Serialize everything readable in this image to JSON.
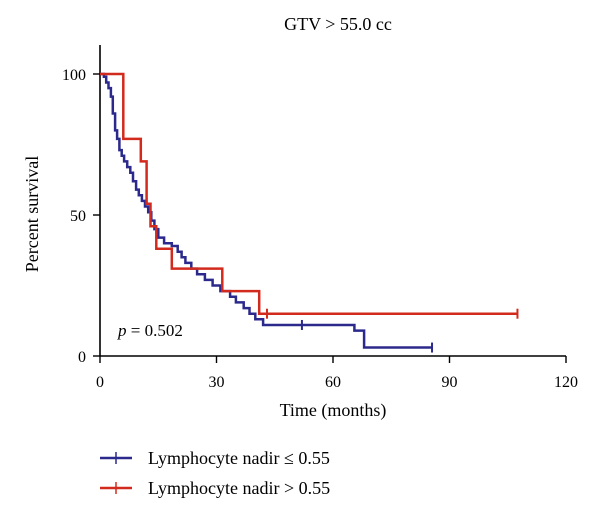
{
  "chart_data": {
    "type": "line",
    "title": "GTV > 55.0 cc",
    "xlabel": "Time (months)",
    "ylabel": "Percent survival",
    "xlim": [
      0,
      120
    ],
    "ylim": [
      0,
      100
    ],
    "xticks": [
      0,
      30,
      60,
      90,
      120
    ],
    "yticks": [
      0,
      50,
      100
    ],
    "grid": false,
    "legend_position": "bottom-left",
    "annotation_p_symbol": "p",
    "annotation_p_value": " = 0.502",
    "series": [
      {
        "name": "Lymphocyte nadir ≤ 0.55",
        "color": "#2b2a8c",
        "step": [
          [
            0,
            100
          ],
          [
            1.0,
            99
          ],
          [
            1.6,
            97
          ],
          [
            2.2,
            95
          ],
          [
            2.8,
            92
          ],
          [
            3.3,
            86
          ],
          [
            3.9,
            80
          ],
          [
            4.4,
            77
          ],
          [
            5.0,
            73
          ],
          [
            5.6,
            71
          ],
          [
            6.2,
            69
          ],
          [
            7.0,
            67
          ],
          [
            7.8,
            65
          ],
          [
            8.5,
            62
          ],
          [
            9.3,
            59
          ],
          [
            10.0,
            57
          ],
          [
            10.8,
            55
          ],
          [
            11.6,
            53
          ],
          [
            12.4,
            51
          ],
          [
            13.2,
            48
          ],
          [
            14.0,
            45
          ],
          [
            15.0,
            42
          ],
          [
            16.5,
            40
          ],
          [
            18.5,
            39
          ],
          [
            20.0,
            37
          ],
          [
            21.0,
            35
          ],
          [
            22.0,
            33
          ],
          [
            23.5,
            31
          ],
          [
            25.0,
            29
          ],
          [
            27.0,
            27
          ],
          [
            29.0,
            25
          ],
          [
            31.0,
            23
          ],
          [
            33.5,
            21
          ],
          [
            35.0,
            19
          ],
          [
            37.0,
            17
          ],
          [
            38.5,
            15
          ],
          [
            40.0,
            13
          ],
          [
            42.0,
            11
          ],
          [
            65.5,
            9
          ],
          [
            68.0,
            3
          ],
          [
            85.5,
            3
          ]
        ],
        "censored": [
          [
            52,
            11
          ],
          [
            85.5,
            3
          ]
        ]
      },
      {
        "name": "Lymphocyte nadir > 0.55",
        "color": "#d22b1d",
        "step": [
          [
            0,
            100
          ],
          [
            6.0,
            77
          ],
          [
            10.5,
            69
          ],
          [
            12.0,
            54
          ],
          [
            13.0,
            46
          ],
          [
            14.5,
            38
          ],
          [
            18.5,
            31
          ],
          [
            31.5,
            23
          ],
          [
            41.0,
            15
          ],
          [
            107.5,
            15
          ]
        ],
        "censored": [
          [
            43,
            15
          ],
          [
            107.5,
            15
          ]
        ]
      }
    ]
  }
}
